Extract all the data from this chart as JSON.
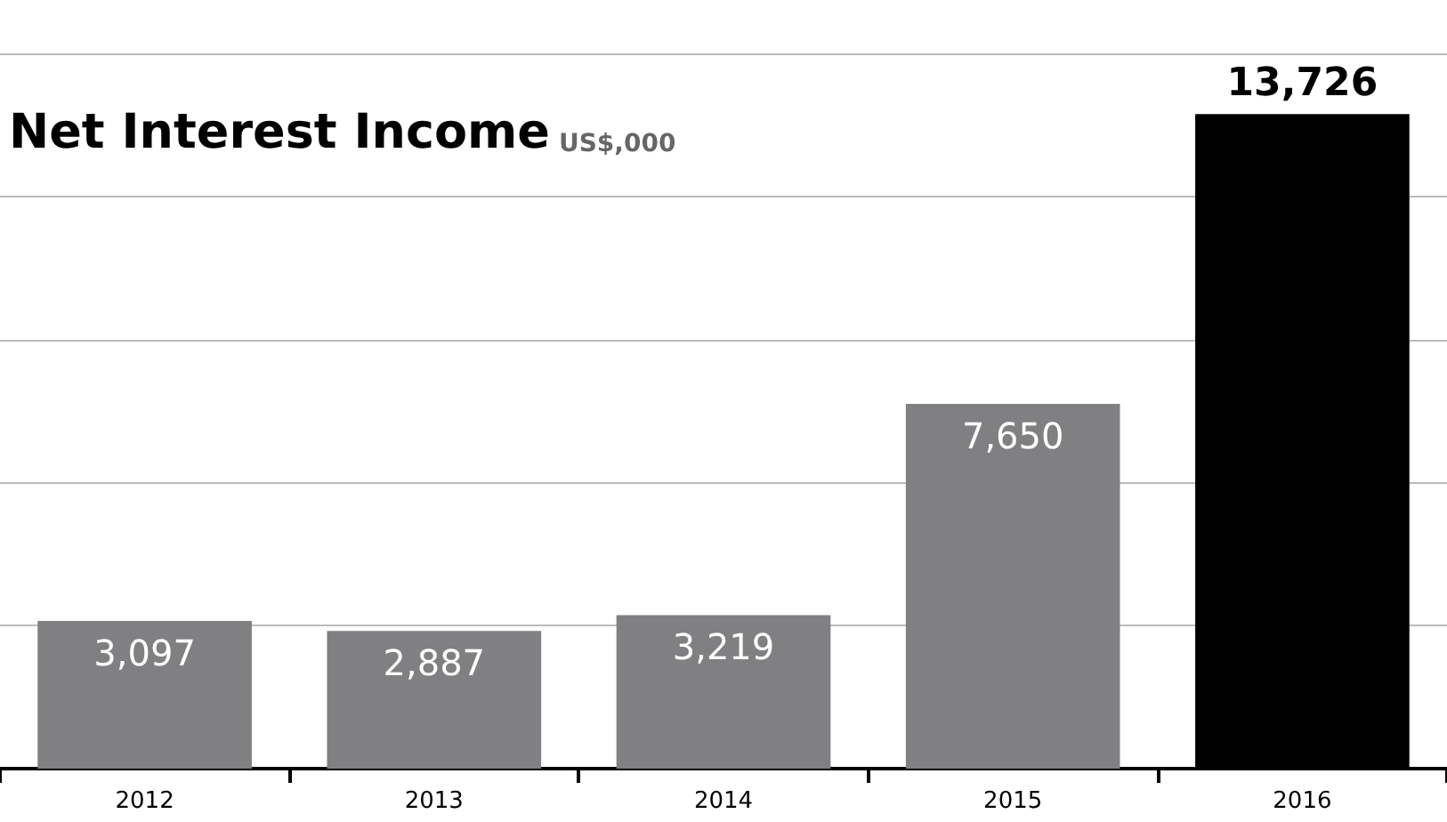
{
  "chart_data": {
    "type": "bar",
    "title": "Net Interest Income",
    "subtitle": "US$,000",
    "categories": [
      "2012",
      "2013",
      "2014",
      "2015",
      "2016"
    ],
    "values": [
      3097,
      2887,
      3219,
      7650,
      13726
    ],
    "value_labels": [
      "3,097",
      "2,887",
      "3,219",
      "7,650",
      "13,726"
    ],
    "colors": [
      "#808083",
      "#808083",
      "#808083",
      "#808083",
      "#000000"
    ],
    "tick_labels": "x",
    "grid": "y"
  }
}
